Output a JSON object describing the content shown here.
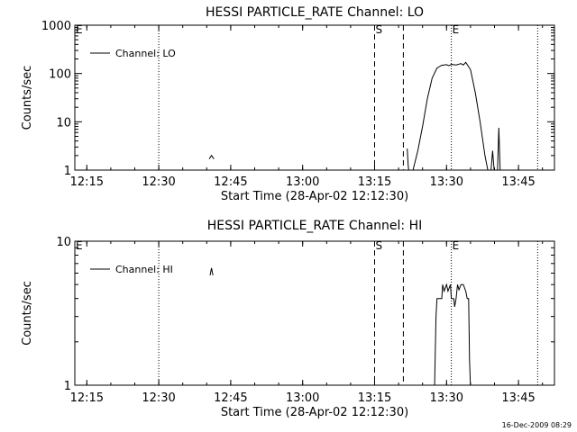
{
  "footer": {
    "stamp": "16-Dec-2009 08:29"
  },
  "chart_data": [
    {
      "type": "line",
      "title": "HESSI PARTICLE_RATE Channel: LO",
      "xlabel": "Start Time (28-Apr-02 12:12:30)",
      "ylabel": "Counts/sec",
      "y_scale": "log",
      "ylim": [
        1,
        1000
      ],
      "xlim": [
        "12:12:30",
        "13:52:30"
      ],
      "x_ticks": [
        "12:15",
        "12:30",
        "12:45",
        "13:00",
        "13:15",
        "13:30",
        "13:45"
      ],
      "y_ticks": [
        "1",
        "10",
        "100",
        "1000"
      ],
      "legend": {
        "label": "Channel: LO",
        "position": "top-left"
      },
      "markers": [
        {
          "label": "E",
          "time": "12:12:30",
          "style": "dotted"
        },
        {
          "label": "",
          "time": "12:30",
          "style": "dotted"
        },
        {
          "label": "S",
          "time": "13:15",
          "style": "dashed"
        },
        {
          "label": "",
          "time": "13:21",
          "style": "dashed"
        },
        {
          "label": "E",
          "time": "13:31",
          "style": "dotted"
        },
        {
          "label": "",
          "time": "13:49",
          "style": "dotted"
        }
      ],
      "series": [
        {
          "name": "Channel: LO",
          "segments": [
            [
              [
                "12:40.5",
                1.7
              ],
              [
                "12:41",
                2.0
              ],
              [
                "12:41.5",
                1.7
              ]
            ],
            [
              [
                "13:21.8",
                2.8
              ],
              [
                "13:22",
                1.3
              ],
              [
                "13:22.2",
                0.8
              ]
            ],
            [
              [
                "13:22.7",
                0.8
              ],
              [
                "13:23",
                1.0
              ],
              [
                "13:24",
                2.5
              ],
              [
                "13:25",
                8
              ],
              [
                "13:26",
                30
              ],
              [
                "13:27",
                80
              ],
              [
                "13:28",
                130
              ],
              [
                "13:29",
                148
              ],
              [
                "13:30",
                152
              ],
              [
                "13:30.5",
                145
              ],
              [
                "13:31",
                155
              ],
              [
                "13:32",
                150
              ],
              [
                "13:33",
                160
              ],
              [
                "13:33.5",
                150
              ],
              [
                "13:34",
                170
              ],
              [
                "13:35",
                120
              ],
              [
                "13:36",
                40
              ],
              [
                "13:37",
                10
              ],
              [
                "13:38",
                2
              ],
              [
                "13:38.8",
                0.8
              ]
            ],
            [
              [
                "13:39.2",
                0.8
              ],
              [
                "13:39.6",
                2.5
              ],
              [
                "13:40",
                0.8
              ]
            ],
            [
              [
                "13:40.6",
                0.8
              ],
              [
                "13:40.9",
                7.5
              ],
              [
                "13:41.2",
                0.8
              ]
            ]
          ]
        }
      ]
    },
    {
      "type": "line",
      "title": "HESSI PARTICLE_RATE Channel: HI",
      "xlabel": "Start Time (28-Apr-02 12:12:30)",
      "ylabel": "Counts/sec",
      "y_scale": "log",
      "ylim": [
        1,
        10
      ],
      "xlim": [
        "12:12:30",
        "13:52:30"
      ],
      "x_ticks": [
        "12:15",
        "12:30",
        "12:45",
        "13:00",
        "13:15",
        "13:30",
        "13:45"
      ],
      "y_ticks": [
        "1",
        "10"
      ],
      "legend": {
        "label": "Channel: HI",
        "position": "top-left"
      },
      "markers": [
        {
          "label": "E",
          "time": "12:12:30",
          "style": "dotted"
        },
        {
          "label": "",
          "time": "12:30",
          "style": "dotted"
        },
        {
          "label": "S",
          "time": "13:15",
          "style": "dashed"
        },
        {
          "label": "",
          "time": "13:21",
          "style": "dashed"
        },
        {
          "label": "E",
          "time": "13:31",
          "style": "dotted"
        },
        {
          "label": "",
          "time": "13:49",
          "style": "dotted"
        }
      ],
      "series": [
        {
          "name": "Channel: HI",
          "segments": [
            [
              [
                "12:40.7",
                5.8
              ],
              [
                "12:41",
                6.5
              ],
              [
                "12:41.3",
                5.8
              ]
            ],
            [
              [
                "13:27.5",
                0.95
              ],
              [
                "13:27.8",
                3
              ],
              [
                "13:28",
                4
              ],
              [
                "13:29",
                4
              ],
              [
                "13:29.2",
                5
              ],
              [
                "13:29.5",
                4.5
              ],
              [
                "13:30",
                5
              ],
              [
                "13:30.3",
                4.5
              ],
              [
                "13:30.8",
                5
              ],
              [
                "13:31",
                4
              ],
              [
                "13:31.5",
                4
              ],
              [
                "13:31.7",
                3.5
              ],
              [
                "13:32",
                4
              ],
              [
                "13:32.3",
                5
              ],
              [
                "13:32.6",
                4.6
              ],
              [
                "13:33",
                5
              ],
              [
                "13:33.5",
                5
              ],
              [
                "13:34",
                4.5
              ],
              [
                "13:34.3",
                4
              ],
              [
                "13:34.6",
                4
              ],
              [
                "13:34.8",
                1.5
              ],
              [
                "13:35",
                0.95
              ]
            ]
          ]
        }
      ]
    }
  ]
}
